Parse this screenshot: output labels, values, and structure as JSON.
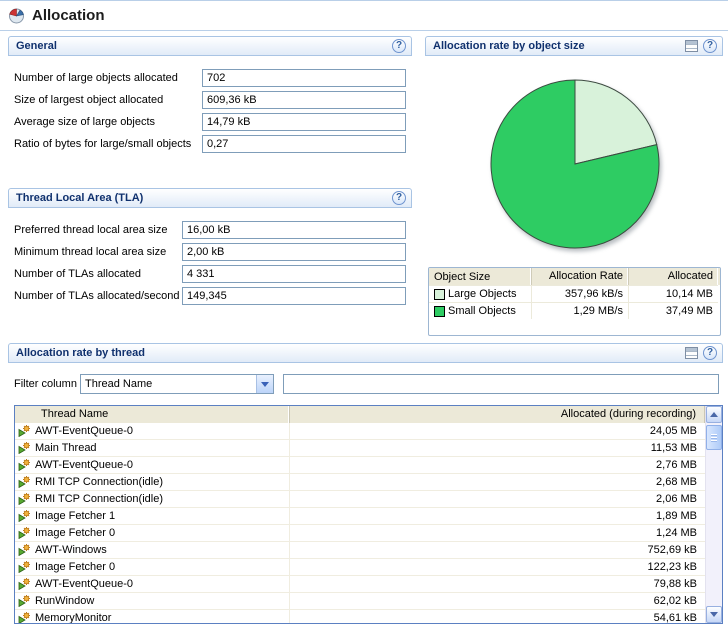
{
  "glyphs": {
    "help": "?"
  },
  "page": {
    "title": "Allocation"
  },
  "general": {
    "title": "General",
    "fields": [
      {
        "label": "Number of large objects allocated",
        "value": "702"
      },
      {
        "label": "Size of largest object allocated",
        "value": "609,36 kB"
      },
      {
        "label": "Average size of large objects",
        "value": "14,79 kB"
      },
      {
        "label": "Ratio of bytes for large/small objects",
        "value": "0,27"
      }
    ]
  },
  "tla": {
    "title": "Thread Local Area (TLA)",
    "fields": [
      {
        "label": "Preferred thread local area size",
        "value": "16,00 kB"
      },
      {
        "label": "Minimum thread local area size",
        "value": "2,00 kB"
      },
      {
        "label": "Number of TLAs allocated",
        "value": "4 331"
      },
      {
        "label": "Number of TLAs allocated/second",
        "value": "149,345"
      }
    ]
  },
  "object_size": {
    "title": "Allocation rate by object size",
    "table": {
      "headers": [
        "Object Size",
        "Allocation Rate",
        "Allocated"
      ],
      "rows": [
        {
          "label": "Large Objects",
          "swatch": "#d8f2da",
          "rate": "357,96 kB/s",
          "allocated": "10,14 MB"
        },
        {
          "label": "Small Objects",
          "swatch": "#2ecc63",
          "rate": "1,29 MB/s",
          "allocated": "37,49 MB"
        }
      ]
    }
  },
  "chart_data": {
    "type": "pie",
    "title": "Allocation rate by object size",
    "value_label": "Allocated (MB)",
    "slices": [
      {
        "label": "Large Objects",
        "value": 10.14,
        "unit": "MB",
        "color": "#d8f2da"
      },
      {
        "label": "Small Objects",
        "value": 37.49,
        "unit": "MB",
        "color": "#2ecc63"
      }
    ],
    "start_angle_deg": -90,
    "direction": "clockwise",
    "legend_position": "table-below"
  },
  "thread": {
    "title": "Allocation rate by thread",
    "filter_label": "Filter column",
    "filter_column_selected": "Thread Name",
    "filter_text": "",
    "table": {
      "headers": [
        "Thread Name",
        "Allocated (during recording)"
      ],
      "rows": [
        {
          "name": "AWT-EventQueue-0",
          "allocated": "24,05 MB"
        },
        {
          "name": "Main Thread",
          "allocated": "11,53 MB"
        },
        {
          "name": "AWT-EventQueue-0",
          "allocated": "2,76 MB"
        },
        {
          "name": "RMI TCP Connection(idle)",
          "allocated": "2,68 MB"
        },
        {
          "name": "RMI TCP Connection(idle)",
          "allocated": "2,06 MB"
        },
        {
          "name": "Image Fetcher 1",
          "allocated": "1,89 MB"
        },
        {
          "name": "Image Fetcher 0",
          "allocated": "1,24 MB"
        },
        {
          "name": "AWT-Windows",
          "allocated": "752,69 kB"
        },
        {
          "name": "Image Fetcher 0",
          "allocated": "122,23 kB"
        },
        {
          "name": "AWT-EventQueue-0",
          "allocated": "79,88 kB"
        },
        {
          "name": "RunWindow",
          "allocated": "62,02 kB"
        },
        {
          "name": "MemoryMonitor",
          "allocated": "54,61 kB"
        }
      ]
    }
  }
}
